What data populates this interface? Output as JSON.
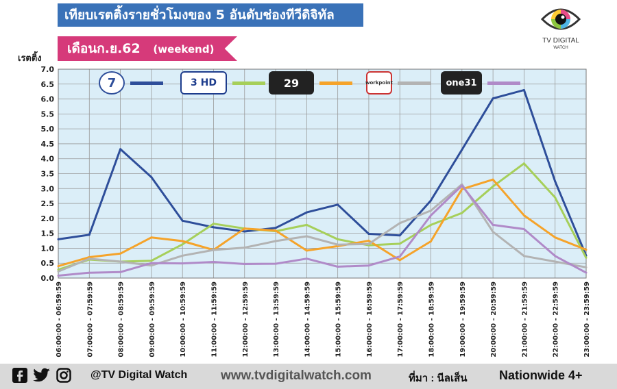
{
  "header": {
    "title": "เทียบเรตติ้งรายชั่วโมงของ 5 อันดับช่องทีวีดิจิทัล",
    "month_label": "เดือนก.ย.62",
    "month_sub": "(weekend)"
  },
  "logo": {
    "line1": "TV DIGITAL",
    "line2": "WATCH"
  },
  "legend": [
    {
      "icon": "ch7-hd-logo-icon",
      "badge": "7",
      "color": "#2e4e9a"
    },
    {
      "icon": "ch3-hd-logo-icon",
      "badge": "3 HD",
      "color": "#a6cf5a"
    },
    {
      "icon": "mono29-logo-icon",
      "badge": "29",
      "color": "#f5a32a"
    },
    {
      "icon": "workpoint-logo-icon",
      "badge": "workpoint",
      "color": "#b3b3b3"
    },
    {
      "icon": "one31-logo-icon",
      "badge": "one31",
      "color": "#b08ac8"
    }
  ],
  "footer": {
    "handle": "@TV Digital Watch",
    "website": "www.tvdigitalwatch.com",
    "source": "ที่มา : นีลเส็น",
    "audience": "Nationwide 4+"
  },
  "chart_data": {
    "type": "line",
    "ylabel": "เรตติ้ง",
    "ylim": [
      0,
      7
    ],
    "yticks": [
      "0.0",
      "0.5",
      "1.0",
      "1.5",
      "2.0",
      "2.5",
      "3.0",
      "3.5",
      "4.0",
      "4.5",
      "5.0",
      "5.5",
      "6.0",
      "6.5",
      "7.0"
    ],
    "grid": true,
    "categories": [
      "06:00:00 - 06:59:59",
      "07:00:00 - 07:59:59",
      "08:00:00 - 08:59:59",
      "09:00:00 - 09:59:59",
      "10:00:00 - 10:59:59",
      "11:00:00 - 11:59:59",
      "12:00:00 - 12:59:59",
      "13:00:00 - 13:59:59",
      "14:00:00 - 14:59:59",
      "15:00:00 - 15:59:59",
      "16:00:00 - 16:59:59",
      "17:00:00 - 17:59:59",
      "18:00:00 - 18:59:59",
      "19:00:00 - 19:59:59",
      "20:00:00 - 20:59:59",
      "21:00:00 - 21:59:59",
      "22:00:00 - 22:59:59",
      "23:00:00 - 23:59:59"
    ],
    "series": [
      {
        "color": "#2e4e9a",
        "values": [
          1.3,
          1.45,
          4.32,
          3.38,
          1.92,
          1.7,
          1.56,
          1.68,
          2.2,
          2.46,
          1.48,
          1.43,
          2.6,
          4.3,
          6.02,
          6.3,
          3.24,
          0.75
        ]
      },
      {
        "color": "#a6cf5a",
        "values": [
          0.28,
          0.62,
          0.55,
          0.58,
          1.13,
          1.82,
          1.66,
          1.57,
          1.78,
          1.3,
          1.1,
          1.15,
          1.78,
          2.18,
          3.07,
          3.84,
          2.7,
          0.68
        ]
      },
      {
        "color": "#f5a32a",
        "values": [
          0.4,
          0.7,
          0.82,
          1.36,
          1.24,
          0.94,
          1.66,
          1.59,
          0.92,
          1.07,
          1.25,
          0.6,
          1.23,
          2.98,
          3.3,
          2.1,
          1.36,
          0.95
        ]
      },
      {
        "color": "#b3b3b3",
        "values": [
          0.22,
          0.65,
          0.55,
          0.42,
          0.75,
          0.94,
          1.02,
          1.24,
          1.4,
          1.12,
          1.14,
          1.84,
          2.26,
          3.14,
          1.55,
          0.74,
          0.55,
          0.36
        ]
      },
      {
        "color": "#b08ac8",
        "values": [
          0.08,
          0.18,
          0.2,
          0.5,
          0.49,
          0.54,
          0.47,
          0.48,
          0.65,
          0.38,
          0.42,
          0.72,
          2.1,
          3.1,
          1.78,
          1.64,
          0.74,
          0.18
        ]
      }
    ]
  }
}
